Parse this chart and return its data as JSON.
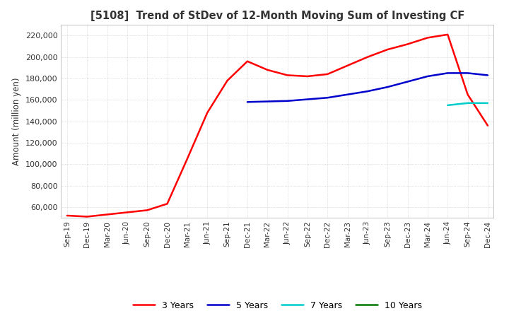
{
  "title": "[5108]  Trend of StDev of 12-Month Moving Sum of Investing CF",
  "ylabel": "Amount (million yen)",
  "ylim": [
    50000,
    230000
  ],
  "yticks": [
    60000,
    80000,
    100000,
    120000,
    140000,
    160000,
    180000,
    200000,
    220000
  ],
  "background_color": "#ffffff",
  "grid_color": "#aaaaaa",
  "legend": [
    "3 Years",
    "5 Years",
    "7 Years",
    "10 Years"
  ],
  "line_colors": [
    "#ff0000",
    "#0000cc",
    "#00cccc",
    "#007700"
  ],
  "x_labels": [
    "Sep-19",
    "Dec-19",
    "Mar-20",
    "Jun-20",
    "Sep-20",
    "Dec-20",
    "Mar-21",
    "Jun-21",
    "Sep-21",
    "Dec-21",
    "Mar-22",
    "Jun-22",
    "Sep-22",
    "Dec-22",
    "Mar-23",
    "Jun-23",
    "Sep-23",
    "Dec-23",
    "Mar-24",
    "Jun-24",
    "Sep-24",
    "Dec-24"
  ],
  "series_3y": [
    52000,
    51000,
    53000,
    55000,
    57000,
    63000,
    105000,
    148000,
    178000,
    196000,
    188000,
    183000,
    182000,
    184000,
    192000,
    200000,
    207000,
    212000,
    218000,
    221000,
    165000,
    136000
  ],
  "series_5y": [
    null,
    null,
    null,
    null,
    null,
    null,
    null,
    null,
    null,
    158000,
    158500,
    159000,
    160500,
    162000,
    165000,
    168000,
    172000,
    177000,
    182000,
    185000,
    185000,
    183000
  ],
  "series_7y": [
    null,
    null,
    null,
    null,
    null,
    null,
    null,
    null,
    null,
    null,
    null,
    null,
    null,
    null,
    null,
    null,
    null,
    null,
    null,
    155000,
    157000,
    157000
  ],
  "series_10y": [
    null,
    null,
    null,
    null,
    null,
    null,
    null,
    null,
    null,
    null,
    null,
    null,
    null,
    null,
    null,
    null,
    null,
    null,
    null,
    null,
    null,
    null
  ]
}
